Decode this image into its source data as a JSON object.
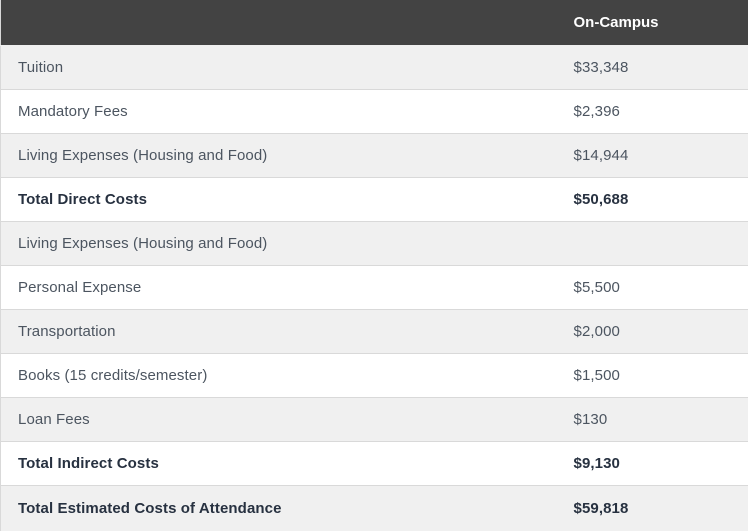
{
  "chart_data": {
    "type": "table",
    "title": "",
    "columns": [
      "",
      "On-Campus"
    ],
    "rows": [
      {
        "label": "Tuition",
        "value": "$33,348",
        "bold": false
      },
      {
        "label": "Mandatory Fees",
        "value": "$2,396",
        "bold": false
      },
      {
        "label": "Living Expenses (Housing and Food)",
        "value": "$14,944",
        "bold": false
      },
      {
        "label": "Total Direct Costs",
        "value": "$50,688",
        "bold": true
      },
      {
        "label": "Living Expenses (Housing and Food)",
        "value": "",
        "bold": false
      },
      {
        "label": "Personal Expense",
        "value": "$5,500",
        "bold": false
      },
      {
        "label": "Transportation",
        "value": "$2,000",
        "bold": false
      },
      {
        "label": "Books (15 credits/semester)",
        "value": "$1,500",
        "bold": false
      },
      {
        "label": "Loan Fees",
        "value": "$130",
        "bold": false
      },
      {
        "label": "Total Indirect Costs",
        "value": "$9,130",
        "bold": true
      },
      {
        "label": "Total Estimated Costs of Attendance",
        "value": "$59,818",
        "bold": true
      }
    ]
  },
  "table": {
    "header": {
      "label_column": "",
      "value_column": "On-Campus"
    }
  },
  "colors": {
    "header_bg": "#434343",
    "header_text": "#ffffff",
    "row_bg": "#ffffff",
    "row_alt_bg": "#f0f0f0",
    "border": "#d9d9d9",
    "label_text": "#4c5560",
    "bold_text": "#273140"
  }
}
